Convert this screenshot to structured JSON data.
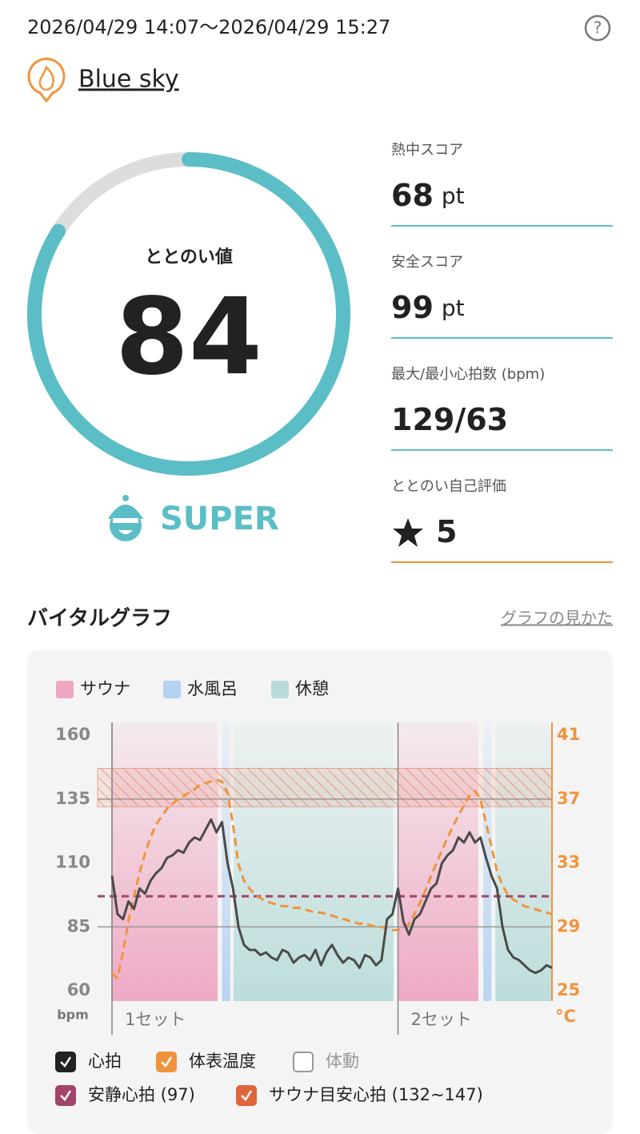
{
  "header": {
    "datetime": "2026/04/29 14:07～2026/04/29 15:27",
    "help": "?"
  },
  "facility": {
    "name": "Blue sky"
  },
  "gauge": {
    "label": "ととのい値",
    "value": 84,
    "range": [
      0,
      100
    ],
    "color": "#5bbec6",
    "track_color": "#dddddd"
  },
  "rank": {
    "label": "SUPER",
    "color": "#5bbec6"
  },
  "scores": [
    {
      "label": "熱中スコア",
      "value": 68,
      "unit": "pt",
      "color": "#5bbec6"
    },
    {
      "label": "安全スコア",
      "value": 99,
      "unit": "pt",
      "color": "#5bbec6"
    },
    {
      "label": "最大/最小心拍数 (bpm)",
      "value": "129/63",
      "color": "#5bbec6"
    },
    {
      "label": "ととのい自己評価",
      "value": 5,
      "color": "#f0943c"
    }
  ],
  "vital_section": {
    "title": "バイタルグラフ",
    "link": "グラフの見かた"
  },
  "chart_data": {
    "type": "line",
    "phases": [
      {
        "name": "サウナ",
        "color": "#eea6c2",
        "spans": [
          [
            0,
            19.2
          ],
          [
            52,
            66.6
          ]
        ]
      },
      {
        "name": "水風呂",
        "color": "#b6d2f2",
        "spans": [
          [
            20,
            21.5
          ],
          [
            67.5,
            69
          ]
        ]
      },
      {
        "name": "休憩",
        "color": "#b9dcda",
        "spans": [
          [
            22.1,
            51.2
          ],
          [
            69.7,
            80
          ]
        ]
      }
    ],
    "x": [
      0,
      1,
      2,
      3,
      4,
      5,
      6,
      7,
      8,
      9,
      10,
      11,
      12,
      13,
      14,
      15,
      16,
      17,
      18,
      19,
      20,
      21,
      22,
      23,
      24,
      25,
      26,
      27,
      28,
      29,
      30,
      31,
      32,
      33,
      34,
      35,
      36,
      37,
      38,
      39,
      40,
      41,
      42,
      43,
      44,
      45,
      46,
      47,
      48,
      49,
      50,
      51,
      52,
      53,
      54,
      55,
      56,
      57,
      58,
      59,
      60,
      61,
      62,
      63,
      64,
      65,
      66,
      67,
      68,
      69,
      70,
      71,
      72,
      73,
      74,
      75,
      76,
      77,
      78,
      79,
      80
    ],
    "xlim": [
      0,
      80
    ],
    "ylim": [
      56,
      165
    ],
    "yticks": [
      160,
      135,
      110,
      85,
      60
    ],
    "y_unit": "bpm",
    "y2lim": [
      24.36,
      41.8
    ],
    "y2ticks": [
      41,
      37,
      33,
      29,
      25
    ],
    "y2_unit": "°C",
    "gridlines": [
      135,
      85
    ],
    "sets": [
      {
        "label": "1セット",
        "x": 0
      },
      {
        "label": "2セット",
        "x": 52
      }
    ],
    "series": [
      {
        "name": "心拍",
        "color": "#4a4a4a",
        "checked": true,
        "values": [
          105,
          90,
          88,
          95,
          92,
          100,
          98,
          103,
          106,
          108,
          112,
          113,
          115,
          114,
          118,
          120,
          119,
          123,
          127,
          122,
          126,
          110,
          100,
          85,
          78,
          76,
          76,
          74,
          75,
          73,
          72,
          76,
          75,
          71,
          73,
          74,
          72,
          76,
          70,
          75,
          78,
          74,
          71,
          73,
          72,
          69,
          74,
          73,
          70,
          72,
          88,
          90,
          100,
          87,
          82,
          88,
          90,
          95,
          100,
          102,
          110,
          113,
          115,
          120,
          118,
          122,
          118,
          120,
          112,
          105,
          100,
          85,
          76,
          73,
          72,
          70,
          68,
          67,
          68,
          70,
          69
        ]
      },
      {
        "name": "体表温度",
        "color": "#f0943c",
        "checked": true,
        "axis": "y2",
        "values": [
          26.1,
          25.8,
          27.4,
          29.4,
          30.9,
          32.4,
          33.6,
          34.6,
          35.4,
          35.9,
          36.4,
          36.7,
          37,
          37.2,
          37.4,
          37.6,
          37.9,
          38,
          38.1,
          38.2,
          38.1,
          37.4,
          35.4,
          32.9,
          31.9,
          31.4,
          31,
          30.8,
          30.6,
          30.5,
          30.4,
          30.3,
          30.3,
          30.2,
          30.2,
          30.1,
          30,
          29.9,
          29.9,
          29.8,
          29.7,
          29.6,
          29.5,
          29.4,
          29.3,
          29.2,
          29.2,
          29.1,
          29,
          29,
          28.9,
          28.8,
          28.8,
          28.9,
          29.2,
          29.8,
          30.5,
          31.3,
          32.2,
          33,
          33.8,
          34.6,
          35.3,
          36,
          36.6,
          37.2,
          37.5,
          37,
          35.5,
          34,
          32.5,
          31.6,
          31,
          30.7,
          30.5,
          30.3,
          30.2,
          30.1,
          30,
          29.9,
          29.8
        ]
      }
    ],
    "hidden_series": [
      {
        "name": "体動",
        "checked": false
      }
    ],
    "reference_line": {
      "name": "安静心拍 (97)",
      "value": 97,
      "color": "#a3456a",
      "checked": true
    },
    "target_zone": {
      "name": "サウナ目安心拍 (132~147)",
      "range": [
        132,
        147
      ],
      "color": "#e0643c",
      "checked": true
    }
  }
}
